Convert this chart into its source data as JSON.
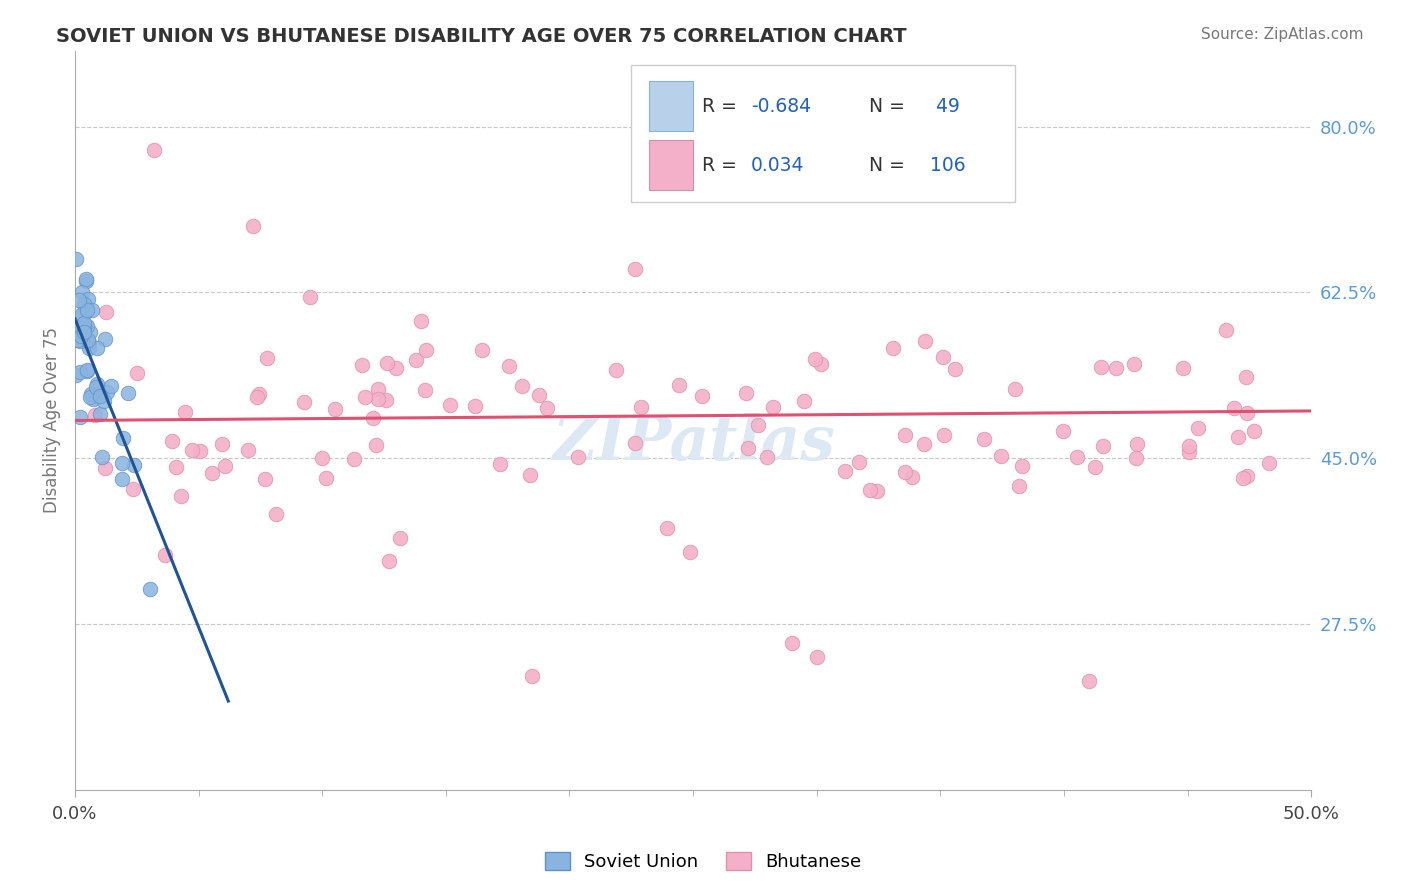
{
  "title": "SOVIET UNION VS BHUTANESE DISABILITY AGE OVER 75 CORRELATION CHART",
  "source": "Source: ZipAtlas.com",
  "ylabel": "Disability Age Over 75",
  "ytick_labels": [
    "80.0%",
    "62.5%",
    "45.0%",
    "27.5%"
  ],
  "ytick_values": [
    0.8,
    0.625,
    0.45,
    0.275
  ],
  "xmin": 0.0,
  "xmax": 0.5,
  "ymin": 0.1,
  "ymax": 0.88,
  "soviet_color": "#8ab4e0",
  "bhutanese_color": "#f4b0c8",
  "soviet_line_color": "#1f5496",
  "bhutanese_line_color": "#e05070",
  "background_color": "#ffffff",
  "grid_color": "#c8c8c8",
  "title_color": "#333333",
  "right_tick_color": "#5b9bd5",
  "legend_box_blue": "#b8d0ea",
  "legend_box_pink": "#f4b0c8",
  "legend_text_color": "#333333",
  "legend_value_color": "#2060c0",
  "watermark_color": "#dce8f4"
}
